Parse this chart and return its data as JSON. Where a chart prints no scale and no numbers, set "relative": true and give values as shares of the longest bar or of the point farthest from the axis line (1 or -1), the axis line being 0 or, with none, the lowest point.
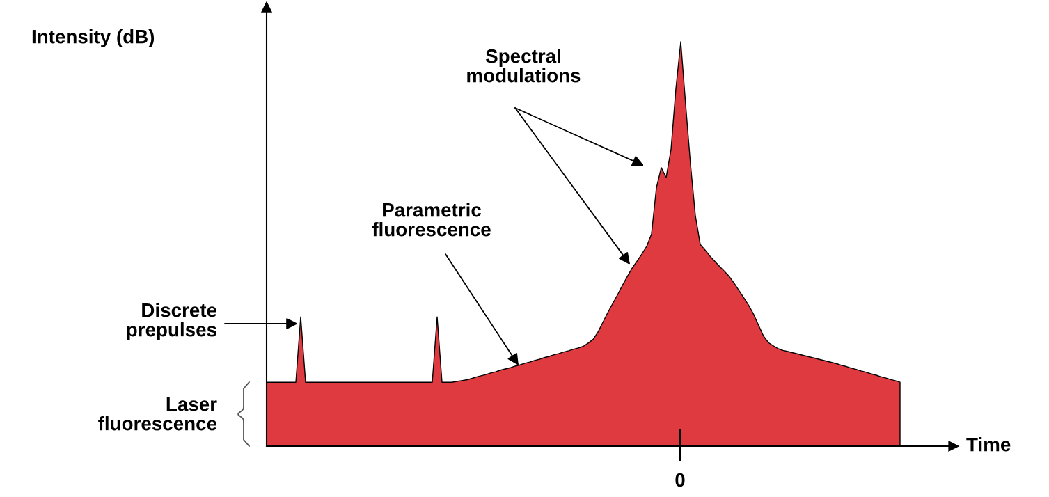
{
  "chart_data": {
    "type": "area",
    "relative": true,
    "xlabel": "Time",
    "color": "#df3a3f",
    "categories": [
      null,
      null,
      null,
      null,
      null,
      null,
      null,
      null,
      null,
      null,
      null,
      null,
      null,
      null,
      null,
      null,
      null,
      null,
      null,
      null,
      null,
      null,
      null,
      null,
      null,
      null,
      null,
      null,
      null,
      null,
      null,
      null,
      null,
      null,
      null,
      null,
      null,
      null,
      null,
      null,
      null,
      null,
      null,
      null,
      null,
      null,
      null,
      null,
      null,
      null,
      null,
      null,
      null,
      null,
      null,
      null,
      null,
      null,
      null,
      null,
      null,
      null,
      null,
      null,
      null,
      null,
      null,
      null,
      null,
      null,
      null,
      null,
      null,
      null,
      null,
      null,
      null,
      null,
      null,
      null,
      null,
      null,
      null,
      null,
      null,
      null,
      null,
      null,
      null,
      null,
      null,
      null,
      null,
      null,
      null,
      null,
      null,
      null,
      null,
      null,
      null,
      null,
      null,
      null,
      null,
      null,
      null,
      null,
      null,
      null,
      null,
      null,
      null,
      null,
      null,
      null,
      null,
      null,
      null,
      null,
      null,
      null,
      null,
      null,
      null,
      null,
      null,
      null,
      null,
      null,
      null
    ],
    "values": [
      0.158,
      0.158,
      0.158,
      0.158,
      0.158,
      0.158,
      0.158,
      0.32,
      0.158,
      0.158,
      0.158,
      0.158,
      0.158,
      0.158,
      0.158,
      0.158,
      0.158,
      0.158,
      0.158,
      0.158,
      0.158,
      0.158,
      0.158,
      0.158,
      0.158,
      0.158,
      0.158,
      0.158,
      0.158,
      0.158,
      0.158,
      0.158,
      0.158,
      0.158,
      0.158,
      0.32,
      0.158,
      0.158,
      0.158,
      0.16,
      0.162,
      0.164,
      0.167,
      0.171,
      0.174,
      0.177,
      0.181,
      0.184,
      0.188,
      0.191,
      0.194,
      0.198,
      0.201,
      0.205,
      0.208,
      0.212,
      0.215,
      0.219,
      0.222,
      0.226,
      0.229,
      0.233,
      0.236,
      0.24,
      0.243,
      0.247,
      0.255,
      0.264,
      0.282,
      0.306,
      0.33,
      0.352,
      0.374,
      0.397,
      0.419,
      0.44,
      0.457,
      0.475,
      0.494,
      0.525,
      0.639,
      0.689,
      0.664,
      0.734,
      0.884,
      1.0,
      0.845,
      0.697,
      0.57,
      0.499,
      0.485,
      0.47,
      0.457,
      0.444,
      0.432,
      0.419,
      0.402,
      0.384,
      0.366,
      0.347,
      0.325,
      0.298,
      0.272,
      0.256,
      0.248,
      0.241,
      0.237,
      0.234,
      0.231,
      0.228,
      0.225,
      0.222,
      0.219,
      0.216,
      0.213,
      0.21,
      0.207,
      0.204,
      0.2,
      0.197,
      0.193,
      0.19,
      0.186,
      0.183,
      0.179,
      0.176,
      0.172,
      0.169,
      0.165,
      0.162,
      0.158
    ],
    "annotations": [
      "Intensity (dB)",
      "0",
      "Spectral\nmodulations",
      "Parametric\nfluorescence",
      "Discrete\nprepulses",
      "Laser\nfluorescence"
    ]
  }
}
